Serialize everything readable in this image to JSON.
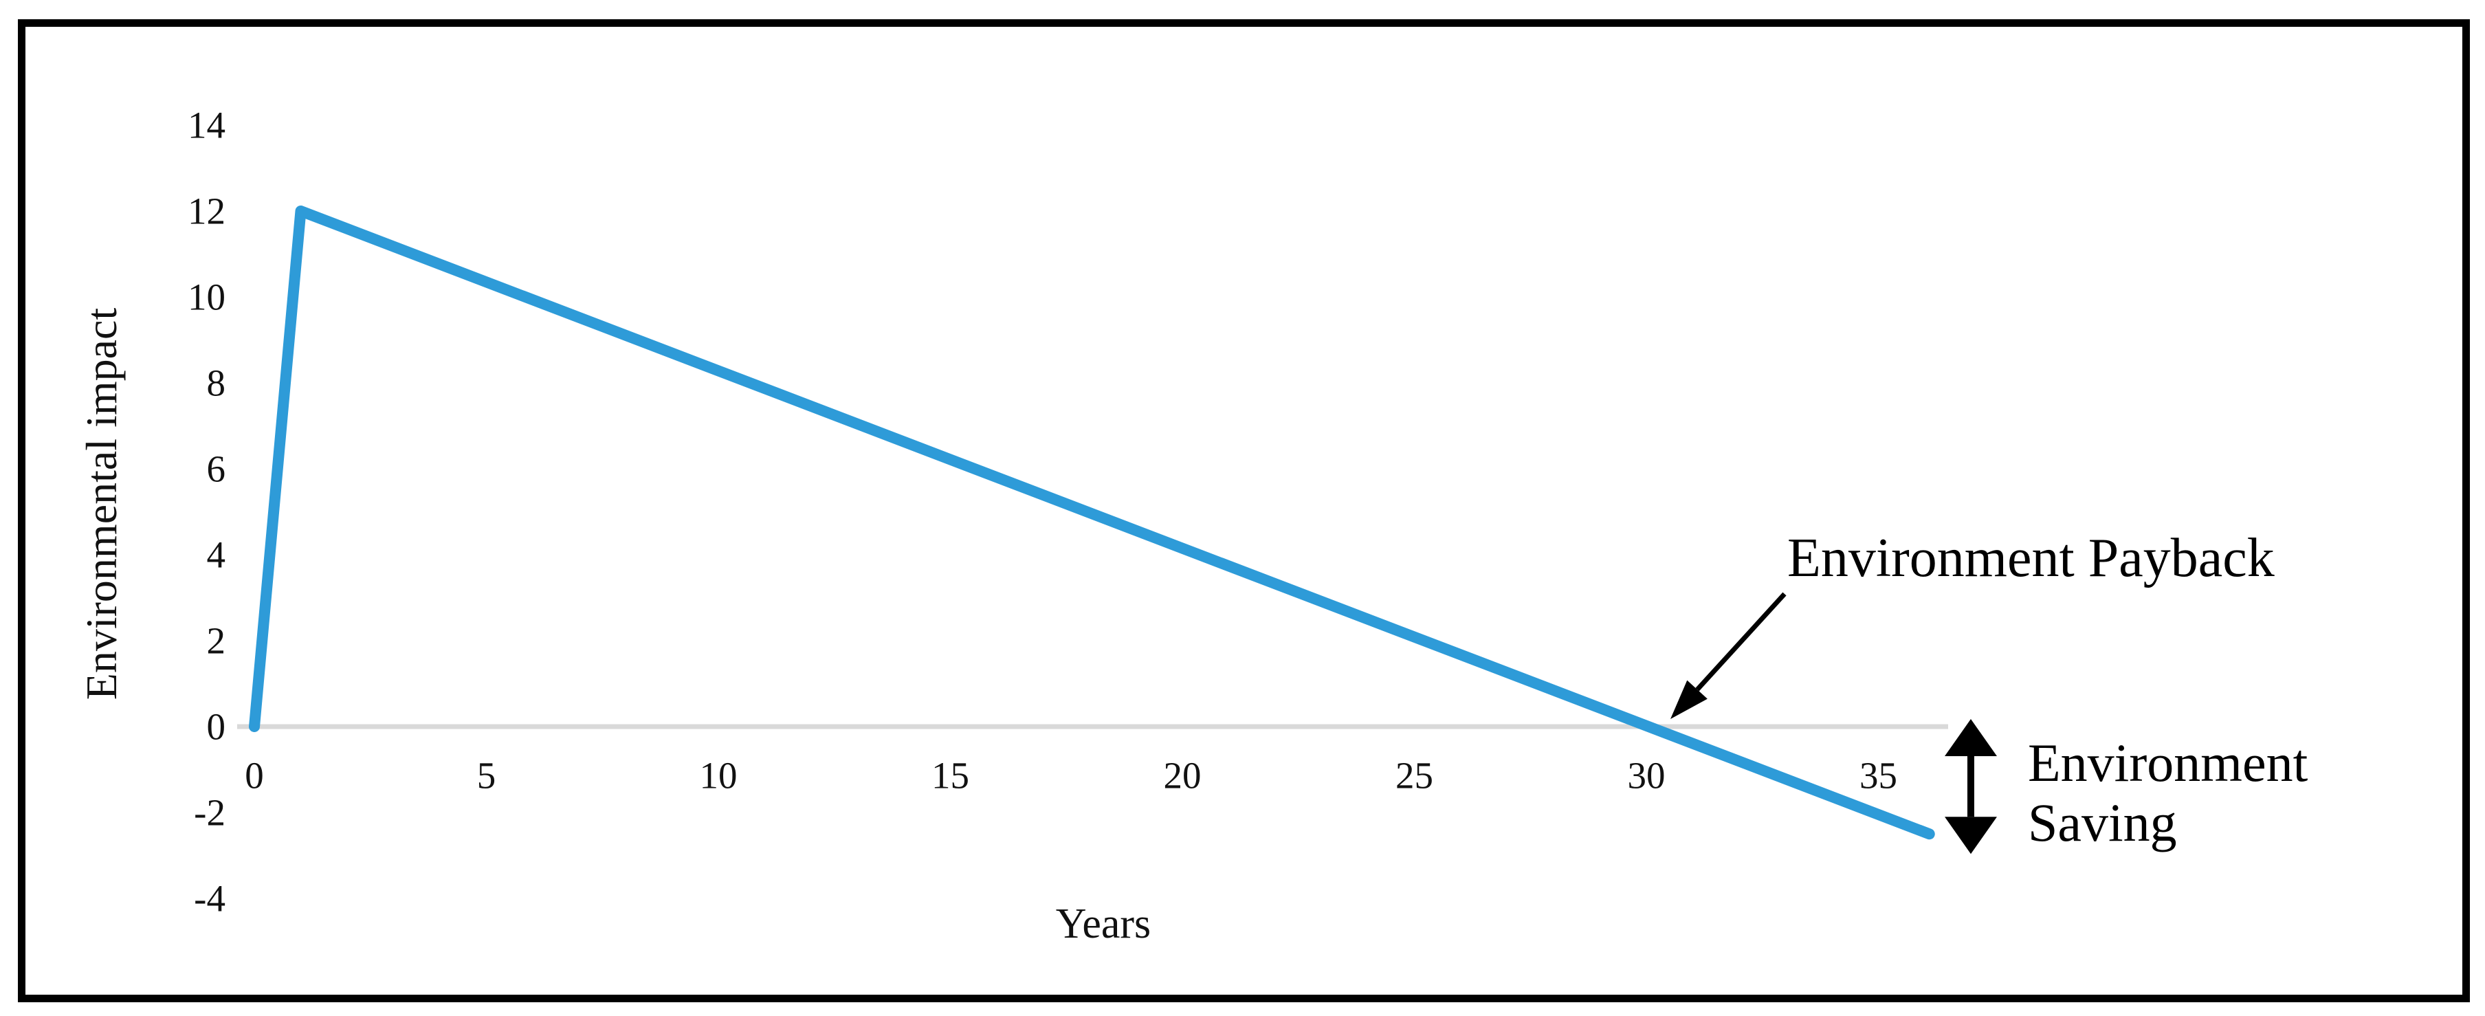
{
  "figure": {
    "background": "#ffffff",
    "border_color": "#000000"
  },
  "chart_data": {
    "type": "line",
    "title": "",
    "xlabel": "Years",
    "ylabel": "Environmental impact",
    "x_ticks": [
      0,
      5,
      10,
      15,
      20,
      25,
      30,
      35
    ],
    "y_ticks": [
      14,
      12,
      10,
      8,
      6,
      4,
      2,
      0,
      -2,
      -4
    ],
    "xlim": [
      0,
      36.5
    ],
    "ylim": [
      -4,
      14
    ],
    "grid": "single horizontal gridline at y=0 only",
    "zero_line_color": "#d9d9d9",
    "series": [
      {
        "name": "Environmental impact",
        "color": "#2e9bd8",
        "points": [
          [
            0,
            0
          ],
          [
            1,
            12
          ],
          [
            36.1,
            -2.5
          ]
        ]
      }
    ],
    "annotations": {
      "payback": {
        "label": "Environment Payback",
        "points_to": {
          "x": 30,
          "y": 0
        }
      },
      "saving": {
        "label_line1": "Environment",
        "label_line2": "Saving",
        "arrow_spans_y_from": 0,
        "arrow_spans_y_to": -2.5
      }
    }
  }
}
